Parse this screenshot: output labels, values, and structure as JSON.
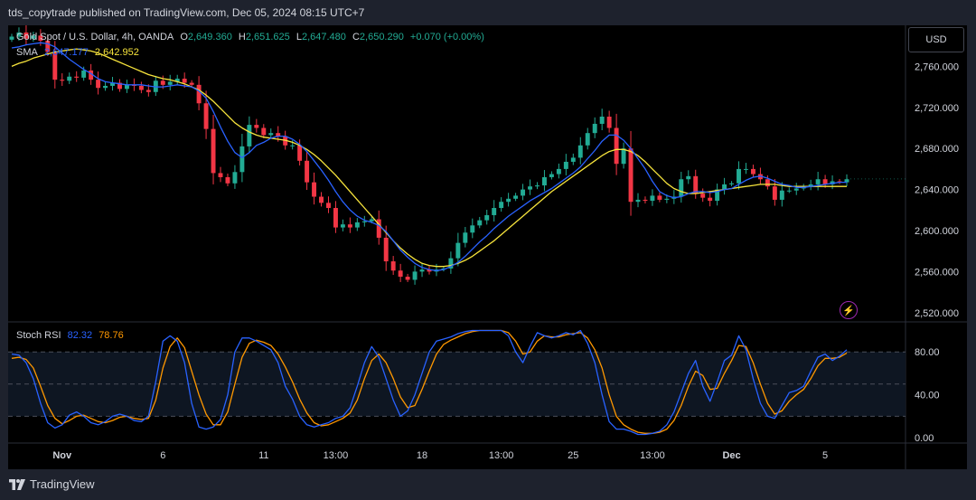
{
  "header": {
    "published": "tds_copytrade published on TradingView.com, Dec 05, 2024 08:15 UTC+7"
  },
  "legend": {
    "symbol": "Gold Spot / U.S. Dollar, 4h, OANDA",
    "o_label": "O",
    "o_value": "2,649.360",
    "h_label": "H",
    "h_value": "2,651.625",
    "l_label": "L",
    "l_value": "2,647.480",
    "c_label": "C",
    "c_value": "2,650.290",
    "change": "+0.070 (+0.00%)",
    "sma_label": "SMA",
    "sma_fast": "2,647.177",
    "sma_slow": "2,642.952",
    "stoch_label": "Stoch RSI",
    "stoch_k": "82.32",
    "stoch_d": "78.76"
  },
  "currency_button": "USD",
  "footer": {
    "brand": "TradingView"
  },
  "icons": {
    "alert": "lightning-icon",
    "logo": "tradingview-logo-icon"
  },
  "colors": {
    "up": "#22ab94",
    "down": "#f23645",
    "sma_fast": "#2962ff",
    "sma_slow": "#f7e43c",
    "stoch_k": "#2962ff",
    "stoch_d": "#ff9800",
    "background": "#000000",
    "frame": "#1e222d"
  },
  "chart_data": [
    {
      "type": "candlestick",
      "title": "Gold Spot / U.S. Dollar, 4h, OANDA",
      "y_ticks": [
        2760,
        2720,
        2680,
        2640,
        2600,
        2560,
        2520
      ],
      "y_tick_labels": [
        "2,760.000",
        "2,720.000",
        "2,680.000",
        "2,640.000",
        "2,600.000",
        "2,560.000",
        "2,520.000"
      ],
      "ylim": [
        2511,
        2800
      ],
      "x_labels": [
        "Nov",
        "6",
        "11",
        "13:00",
        "18",
        "13:00",
        "25",
        "13:00",
        "Dec",
        "5"
      ],
      "x_label_bar_index": [
        7,
        21,
        35,
        45,
        57,
        68,
        78,
        89,
        100,
        113
      ],
      "last_price": 2650.29,
      "close": [
        2789,
        2793,
        2787,
        2790,
        2785,
        2774,
        2747,
        2746,
        2750,
        2749,
        2756,
        2747,
        2739,
        2741,
        2744,
        2738,
        2742,
        2741,
        2737,
        2735,
        2746,
        2742,
        2745,
        2748,
        2744,
        2742,
        2724,
        2699,
        2656,
        2652,
        2646,
        2657,
        2682,
        2703,
        2700,
        2693,
        2695,
        2692,
        2683,
        2683,
        2668,
        2647,
        2633,
        2627,
        2622,
        2603,
        2606,
        2603,
        2608,
        2609,
        2611,
        2593,
        2570,
        2561,
        2555,
        2552,
        2560,
        2562,
        2560,
        2562,
        2563,
        2573,
        2588,
        2598,
        2605,
        2610,
        2615,
        2622,
        2628,
        2631,
        2634,
        2640,
        2643,
        2644,
        2652,
        2655,
        2660,
        2667,
        2671,
        2683,
        2695,
        2704,
        2711,
        2700,
        2665,
        2680,
        2628,
        2630,
        2629,
        2634,
        2630,
        2631,
        2633,
        2650,
        2653,
        2636,
        2632,
        2629,
        2640,
        2645,
        2646,
        2660,
        2660,
        2655,
        2650,
        2643,
        2630,
        2639,
        2639,
        2641,
        2643,
        2645,
        2650,
        2645,
        2648,
        2647,
        2650
      ],
      "sma_fast": [
        2778,
        2779,
        2781,
        2782,
        2783,
        2782,
        2779,
        2773,
        2767,
        2762,
        2757,
        2753,
        2748,
        2745,
        2744,
        2743,
        2742,
        2742,
        2742,
        2741,
        2740,
        2740,
        2741,
        2742,
        2741,
        2740,
        2736,
        2729,
        2716,
        2701,
        2687,
        2676,
        2671,
        2676,
        2683,
        2686,
        2690,
        2692,
        2692,
        2689,
        2684,
        2677,
        2668,
        2659,
        2649,
        2638,
        2628,
        2620,
        2614,
        2610,
        2608,
        2605,
        2599,
        2590,
        2581,
        2574,
        2568,
        2564,
        2562,
        2561,
        2562,
        2565,
        2569,
        2575,
        2582,
        2589,
        2595,
        2602,
        2608,
        2614,
        2619,
        2624,
        2629,
        2633,
        2637,
        2641,
        2646,
        2651,
        2656,
        2662,
        2670,
        2678,
        2687,
        2693,
        2693,
        2688,
        2680,
        2670,
        2660,
        2648,
        2638,
        2634,
        2632,
        2633,
        2636,
        2638,
        2638,
        2637,
        2638,
        2640,
        2641,
        2645,
        2649,
        2652,
        2653,
        2651,
        2648,
        2645,
        2644,
        2642,
        2642,
        2643,
        2644,
        2645,
        2646,
        2647,
        2647
      ],
      "sma_slow": [
        2760,
        2763,
        2765,
        2768,
        2770,
        2772,
        2774,
        2775,
        2776,
        2777,
        2776,
        2775,
        2773,
        2770,
        2767,
        2764,
        2761,
        2758,
        2755,
        2752,
        2750,
        2748,
        2747,
        2745,
        2743,
        2740,
        2737,
        2732,
        2726,
        2719,
        2712,
        2705,
        2700,
        2696,
        2693,
        2691,
        2690,
        2689,
        2688,
        2686,
        2683,
        2679,
        2674,
        2668,
        2661,
        2654,
        2646,
        2638,
        2630,
        2622,
        2614,
        2606,
        2598,
        2590,
        2583,
        2577,
        2572,
        2568,
        2566,
        2565,
        2565,
        2566,
        2568,
        2571,
        2575,
        2580,
        2585,
        2590,
        2596,
        2602,
        2608,
        2614,
        2620,
        2626,
        2632,
        2638,
        2643,
        2648,
        2653,
        2658,
        2663,
        2668,
        2673,
        2677,
        2679,
        2679,
        2677,
        2673,
        2667,
        2660,
        2653,
        2646,
        2641,
        2638,
        2636,
        2636,
        2637,
        2638,
        2639,
        2640,
        2641,
        2642,
        2643,
        2644,
        2645,
        2645,
        2645,
        2644,
        2643,
        2643,
        2643,
        2643,
        2643,
        2643,
        2643,
        2643,
        2643
      ]
    },
    {
      "type": "line",
      "title": "Stoch RSI",
      "ylim": [
        -5,
        108
      ],
      "y_ticks": [
        0,
        40,
        80
      ],
      "y_tick_labels": [
        "0.00",
        "40.00",
        "80.00"
      ],
      "bands": [
        20,
        50,
        80
      ],
      "series": [
        {
          "name": "K",
          "values": [
            78,
            77,
            70,
            55,
            32,
            14,
            9,
            12,
            21,
            24,
            20,
            14,
            12,
            15,
            20,
            22,
            20,
            16,
            15,
            20,
            52,
            90,
            95,
            90,
            70,
            32,
            10,
            8,
            10,
            17,
            40,
            80,
            93,
            93,
            90,
            86,
            82,
            70,
            48,
            36,
            20,
            12,
            10,
            12,
            14,
            18,
            20,
            28,
            48,
            70,
            85,
            75,
            55,
            35,
            20,
            25,
            40,
            60,
            80,
            90,
            92,
            94,
            97,
            99,
            100,
            100,
            100,
            100,
            100,
            95,
            80,
            70,
            85,
            98,
            95,
            93,
            95,
            98,
            96,
            100,
            88,
            70,
            40,
            15,
            8,
            8,
            6,
            3,
            3,
            4,
            6,
            12,
            24,
            42,
            60,
            72,
            48,
            34,
            52,
            72,
            77,
            95,
            82,
            55,
            32,
            20,
            18,
            30,
            42,
            44,
            48,
            62,
            75,
            78,
            72,
            76,
            82
          ]
        },
        {
          "name": "D",
          "values": [
            74,
            75,
            73,
            65,
            48,
            30,
            18,
            13,
            16,
            20,
            21,
            18,
            15,
            14,
            16,
            19,
            20,
            18,
            17,
            18,
            35,
            65,
            85,
            93,
            84,
            62,
            40,
            22,
            12,
            12,
            24,
            50,
            75,
            88,
            91,
            89,
            86,
            78,
            66,
            52,
            36,
            23,
            14,
            11,
            12,
            15,
            18,
            23,
            35,
            55,
            72,
            78,
            70,
            55,
            38,
            28,
            30,
            45,
            62,
            78,
            87,
            91,
            94,
            97,
            99,
            100,
            100,
            100,
            100,
            98,
            90,
            78,
            80,
            90,
            95,
            94,
            94,
            96,
            97,
            98,
            93,
            82,
            65,
            40,
            20,
            12,
            8,
            5,
            4,
            4,
            5,
            8,
            16,
            30,
            48,
            62,
            58,
            45,
            46,
            60,
            72,
            86,
            85,
            70,
            50,
            32,
            22,
            25,
            34,
            40,
            45,
            55,
            67,
            74,
            74,
            75,
            79
          ]
        }
      ]
    }
  ]
}
